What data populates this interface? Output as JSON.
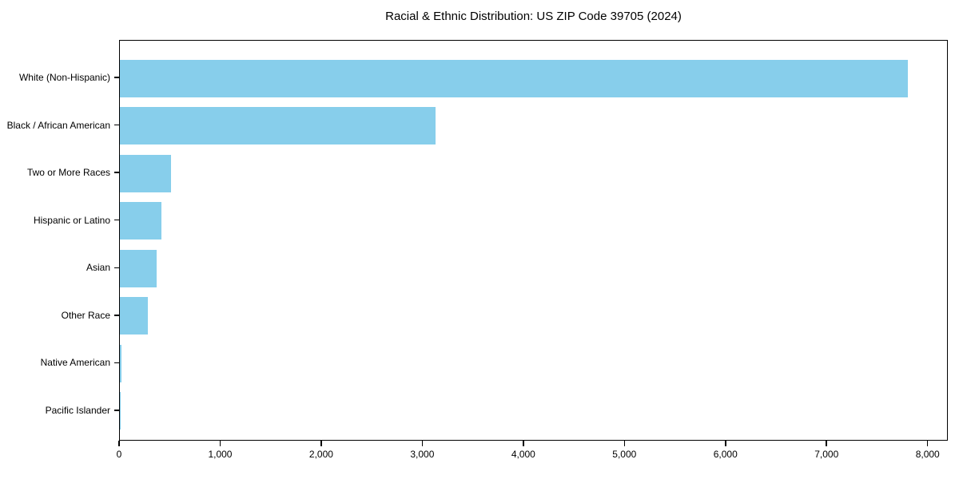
{
  "chart_data": {
    "type": "bar",
    "orientation": "horizontal",
    "title": "Racial & Ethnic Distribution: US ZIP Code 39705 (2024)",
    "categories": [
      "White (Non-Hispanic)",
      "Black / African American",
      "Two or More Races",
      "Hispanic or Latino",
      "Asian",
      "Other Race",
      "Native American",
      "Pacific Islander"
    ],
    "values": [
      7800,
      3120,
      510,
      410,
      365,
      280,
      15,
      5
    ],
    "xlabel": "",
    "ylabel": "",
    "xlim": [
      0,
      8200
    ],
    "x_ticks": [
      0,
      1000,
      2000,
      3000,
      4000,
      5000,
      6000,
      7000,
      8000
    ],
    "x_tick_labels": [
      "0",
      "1,000",
      "2,000",
      "3,000",
      "4,000",
      "5,000",
      "6,000",
      "7,000",
      "8,000"
    ],
    "bar_color": "#87CEEB",
    "spine_color": "#000000",
    "text_color": "#000000",
    "plot_background": "#ffffff",
    "grid": false,
    "legend": null
  }
}
